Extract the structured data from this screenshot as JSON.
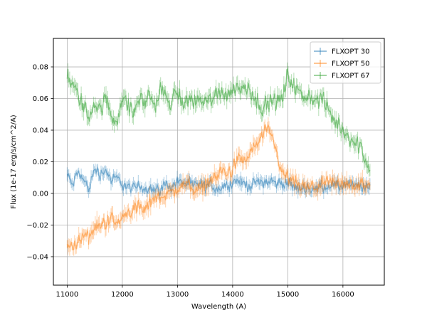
{
  "chart_data": {
    "type": "line",
    "title": "",
    "xlabel": "Wavelength (A)",
    "ylabel": "Flux (1e-17 erg/s/cm^2/A)",
    "xlim": [
      10750,
      16750
    ],
    "ylim": [
      -0.058,
      0.098
    ],
    "xticks": [
      11000,
      12000,
      13000,
      14000,
      15000,
      16000
    ],
    "yticks": [
      -0.04,
      -0.02,
      0.0,
      0.02,
      0.04,
      0.06,
      0.08
    ],
    "ytick_labels": [
      "−0.04",
      "−0.02",
      "0.00",
      "0.02",
      "0.04",
      "0.06",
      "0.08"
    ],
    "grid": true,
    "legend_position": "upper right",
    "has_error_bars": true,
    "series": [
      {
        "name": "FLXOPT 30",
        "color": "#1f77b4",
        "noise": 0.004,
        "err": 0.003,
        "x": [
          11000,
          11100,
          11200,
          11300,
          11400,
          11500,
          11600,
          11700,
          11800,
          11900,
          12000,
          12100,
          12200,
          12300,
          12400,
          12500,
          12600,
          12700,
          12800,
          12900,
          13000,
          13100,
          13200,
          13300,
          13400,
          13500,
          13600,
          13700,
          13800,
          13900,
          14000,
          14100,
          14200,
          14300,
          14400,
          14500,
          14600,
          14700,
          14800,
          14900,
          15000,
          15100,
          15200,
          15300,
          15400,
          15500,
          15600,
          15700,
          15800,
          15900,
          16000,
          16100,
          16200,
          16300,
          16400,
          16500
        ],
        "y": [
          0.012,
          0.005,
          0.014,
          0.008,
          0.003,
          0.016,
          0.012,
          0.015,
          0.008,
          0.01,
          0.006,
          0.004,
          0.003,
          0.005,
          0.003,
          0.004,
          0.002,
          0.003,
          0.006,
          0.004,
          0.008,
          0.007,
          0.006,
          0.005,
          0.006,
          0.004,
          0.006,
          0.003,
          0.004,
          0.005,
          0.007,
          0.008,
          0.006,
          0.005,
          0.006,
          0.008,
          0.007,
          0.008,
          0.006,
          0.007,
          0.006,
          0.004,
          0.003,
          0.004,
          0.003,
          0.002,
          0.005,
          0.004,
          0.006,
          0.004,
          0.005,
          0.006,
          0.004,
          0.005,
          0.003,
          0.004
        ]
      },
      {
        "name": "FLXOPT 50",
        "color": "#ff7f0e",
        "noise": 0.005,
        "err": 0.004,
        "x": [
          11000,
          11100,
          11200,
          11300,
          11400,
          11500,
          11600,
          11700,
          11800,
          11900,
          12000,
          12100,
          12200,
          12300,
          12400,
          12500,
          12600,
          12700,
          12800,
          12900,
          13000,
          13100,
          13200,
          13300,
          13400,
          13500,
          13600,
          13700,
          13800,
          13900,
          14000,
          14100,
          14200,
          14300,
          14400,
          14500,
          14600,
          14700,
          14800,
          14900,
          15000,
          15100,
          15200,
          15300,
          15400,
          15500,
          15600,
          15700,
          15800,
          15900,
          16000,
          16100,
          16200,
          16300,
          16400,
          16500
        ],
        "y": [
          -0.03,
          -0.035,
          -0.03,
          -0.025,
          -0.028,
          -0.022,
          -0.02,
          -0.018,
          -0.015,
          -0.02,
          -0.015,
          -0.012,
          -0.01,
          -0.008,
          -0.012,
          -0.005,
          -0.002,
          -0.003,
          0.001,
          0.0,
          0.003,
          0.005,
          0.006,
          0.003,
          0.002,
          0.006,
          0.008,
          0.01,
          0.015,
          0.012,
          0.015,
          0.022,
          0.02,
          0.024,
          0.03,
          0.034,
          0.04,
          0.036,
          0.025,
          0.012,
          0.01,
          0.007,
          0.005,
          0.004,
          0.003,
          0.004,
          0.006,
          0.006,
          0.007,
          0.005,
          0.006,
          0.007,
          0.005,
          0.006,
          0.004,
          0.005
        ]
      },
      {
        "name": "FLXOPT 67",
        "color": "#2ca02c",
        "noise": 0.006,
        "err": 0.004,
        "x": [
          11000,
          11100,
          11200,
          11300,
          11400,
          11500,
          11600,
          11700,
          11800,
          11900,
          12000,
          12100,
          12200,
          12300,
          12400,
          12500,
          12600,
          12700,
          12800,
          12900,
          13000,
          13100,
          13200,
          13300,
          13400,
          13500,
          13600,
          13700,
          13800,
          13900,
          14000,
          14100,
          14200,
          14300,
          14400,
          14500,
          14600,
          14700,
          14800,
          14900,
          15000,
          15100,
          15200,
          15300,
          15400,
          15500,
          15600,
          15700,
          15800,
          15900,
          16000,
          16100,
          16200,
          16300,
          16400,
          16500
        ],
        "y": [
          0.075,
          0.068,
          0.062,
          0.055,
          0.048,
          0.058,
          0.052,
          0.06,
          0.05,
          0.045,
          0.062,
          0.055,
          0.05,
          0.06,
          0.058,
          0.062,
          0.055,
          0.066,
          0.06,
          0.058,
          0.065,
          0.056,
          0.06,
          0.058,
          0.06,
          0.057,
          0.06,
          0.062,
          0.065,
          0.063,
          0.065,
          0.068,
          0.066,
          0.068,
          0.06,
          0.056,
          0.055,
          0.058,
          0.058,
          0.06,
          0.075,
          0.068,
          0.064,
          0.06,
          0.062,
          0.058,
          0.06,
          0.055,
          0.048,
          0.044,
          0.04,
          0.036,
          0.033,
          0.03,
          0.022,
          0.016
        ]
      }
    ]
  }
}
